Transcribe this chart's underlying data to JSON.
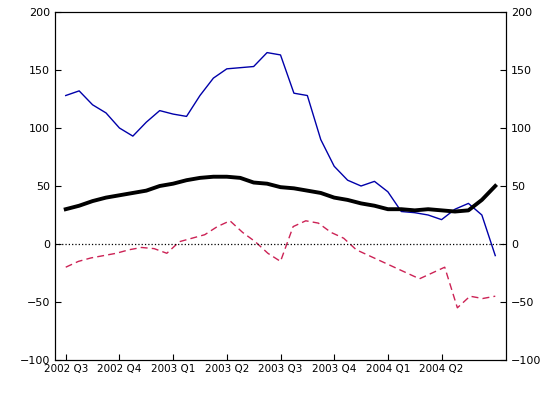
{
  "x_labels": [
    "2002 Q3",
    "2002 Q4",
    "2003 Q1",
    "2003 Q2",
    "2003 Q3",
    "2003 Q4",
    "2004 Q1",
    "2004 Q2"
  ],
  "blue_line": [
    128,
    132,
    120,
    113,
    100,
    93,
    105,
    115,
    112,
    110,
    128,
    143,
    151,
    152,
    153,
    165,
    163,
    130,
    128,
    90,
    67,
    55,
    50,
    54,
    45,
    28,
    27,
    25,
    21,
    30,
    35,
    25,
    -10
  ],
  "black_line": [
    30,
    33,
    37,
    40,
    42,
    44,
    46,
    50,
    52,
    55,
    57,
    58,
    58,
    57,
    53,
    52,
    49,
    48,
    46,
    44,
    40,
    38,
    35,
    33,
    30,
    30,
    29,
    30,
    29,
    28,
    29,
    38,
    50
  ],
  "red_dashed": [
    -20,
    -15,
    -12,
    -10,
    -8,
    -5,
    -3,
    -4,
    -8,
    2,
    5,
    8,
    15,
    20,
    10,
    2,
    -8,
    -15,
    15,
    20,
    18,
    10,
    5,
    -5,
    -10,
    -15,
    -20,
    -25,
    -30,
    -25,
    -20,
    -55,
    -45,
    -47,
    -45
  ],
  "ylim": [
    -100,
    200
  ],
  "yticks": [
    -100,
    -50,
    0,
    50,
    100,
    150,
    200
  ],
  "bg_color": "#ffffff",
  "blue_color": "#0000aa",
  "black_color": "#000000",
  "red_color": "#cc2255",
  "zero_line_color": "#000000"
}
